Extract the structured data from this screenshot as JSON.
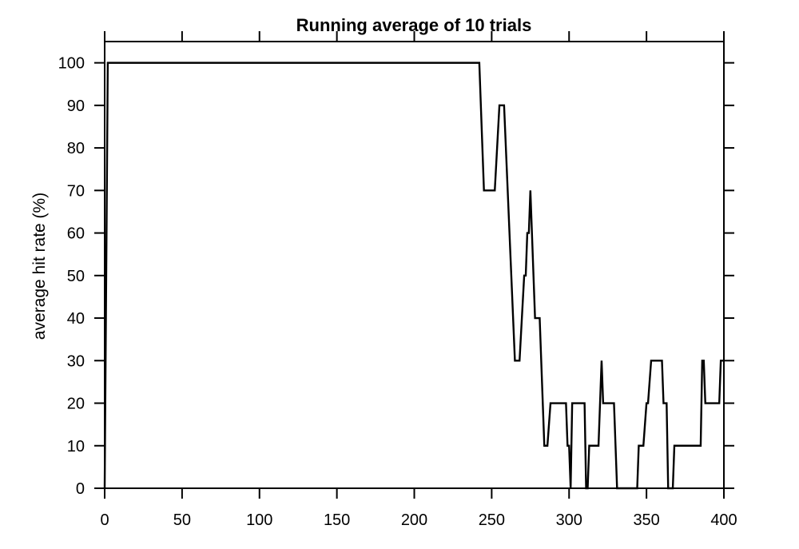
{
  "chart_data": {
    "type": "line",
    "title": "Running average of 10 trials",
    "xlabel": "",
    "ylabel": "average hit rate (%)",
    "xlim": [
      0,
      400
    ],
    "ylim": [
      0,
      105
    ],
    "x_ticks": [
      "0",
      "50",
      "100",
      "150",
      "200",
      "250",
      "300",
      "350",
      "400"
    ],
    "y_ticks": [
      "0",
      "10",
      "20",
      "30",
      "40",
      "50",
      "60",
      "70",
      "80",
      "90",
      "100"
    ],
    "grid": false,
    "line_color": "#000000",
    "series": [
      {
        "x": [
          0,
          2,
          242,
          245,
          252,
          255,
          258,
          265,
          268,
          271,
          272,
          273,
          274,
          275,
          278,
          281,
          284,
          286,
          288,
          298,
          299,
          300,
          301,
          302,
          310,
          311,
          312,
          313,
          319,
          320,
          321,
          322,
          323,
          329,
          330,
          331,
          344,
          345,
          348,
          350,
          351,
          353,
          354,
          355,
          356,
          360,
          361,
          362,
          363,
          364,
          365,
          366,
          367,
          368,
          369,
          384,
          385,
          386,
          387,
          388,
          396,
          397,
          398,
          400
        ],
        "y": [
          0,
          100,
          100,
          70,
          70,
          90,
          90,
          30,
          30,
          50,
          50,
          60,
          60,
          70,
          40,
          40,
          10,
          10,
          20,
          20,
          10,
          10,
          0,
          20,
          20,
          0,
          0,
          10,
          10,
          20,
          30,
          20,
          20,
          20,
          10,
          0,
          0,
          10,
          10,
          20,
          20,
          30,
          30,
          30,
          30,
          30,
          20,
          20,
          20,
          0,
          0,
          0,
          0,
          10,
          10,
          10,
          10,
          30,
          30,
          20,
          20,
          20,
          30,
          30
        ]
      }
    ]
  }
}
